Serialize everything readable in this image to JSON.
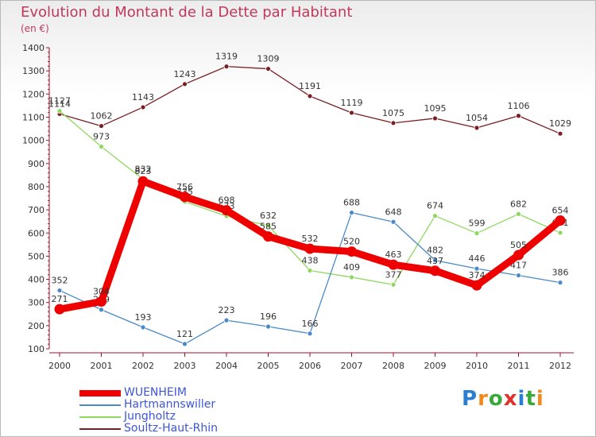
{
  "page": {
    "title": "Evolution du Montant de la Dette par Habitant",
    "subtitle": "(en €)"
  },
  "chart_data": {
    "type": "line",
    "title": "Evolution du Montant de la Dette par Habitant",
    "ylabel": "(en €)",
    "ylim": [
      100,
      1400
    ],
    "yticks": [
      100,
      200,
      300,
      400,
      500,
      600,
      700,
      800,
      900,
      1000,
      1100,
      1200,
      1300,
      1400
    ],
    "grid": false,
    "legend_position": "bottom-left",
    "x": [
      "2000",
      "2001",
      "2002",
      "2003",
      "2004",
      "2005",
      "2006",
      "2007",
      "2008",
      "2009",
      "2010",
      "2011",
      "2012"
    ],
    "series": [
      {
        "name": "WUENHEIM",
        "color": "#ee0000",
        "values": [
          271,
          304,
          823,
          756,
          698,
          585,
          532,
          520,
          463,
          437,
          374,
          505,
          654
        ]
      },
      {
        "name": "Hartmannswiller",
        "color": "#4a8ac8",
        "values": [
          352,
          269,
          193,
          121,
          223,
          196,
          166,
          688,
          648,
          482,
          446,
          417,
          386
        ]
      },
      {
        "name": "Jungholtz",
        "color": "#8ed860",
        "values": [
          1127,
          973,
          832,
          735,
          673,
          632,
          438,
          409,
          377,
          674,
          599,
          682,
          601
        ]
      },
      {
        "name": "Soultz-Haut-Rhin",
        "color": "#7a1e22",
        "values": [
          1114,
          1062,
          1143,
          1243,
          1319,
          1309,
          1191,
          1119,
          1075,
          1095,
          1054,
          1106,
          1029
        ]
      }
    ]
  },
  "logo": {
    "letters": [
      "P",
      "r",
      "o",
      "x",
      "i",
      "t",
      "i"
    ],
    "colors": [
      "#2a7fd4",
      "#f08a1c",
      "#3aa83a",
      "#e2302a",
      "#2a7fd4",
      "#3aa83a",
      "#f08a1c"
    ]
  }
}
